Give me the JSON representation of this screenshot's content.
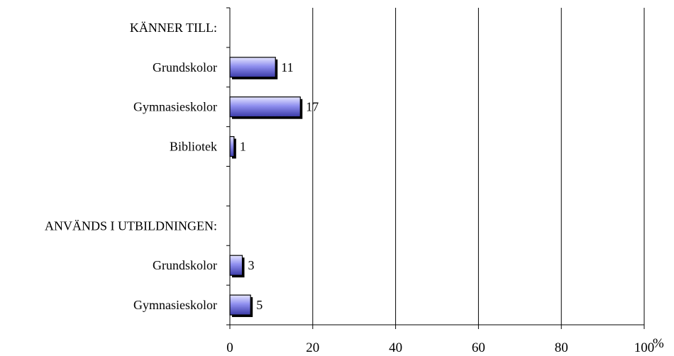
{
  "chart_data": {
    "type": "bar",
    "orientation": "horizontal",
    "rows": [
      {
        "label": "KÄNNER TILL:",
        "kind": "header"
      },
      {
        "label": "Grundskolor",
        "kind": "bar",
        "value": 11,
        "value_label": "11"
      },
      {
        "label": "Gymnasieskolor",
        "kind": "bar",
        "value": 17,
        "value_label": "17"
      },
      {
        "label": "Bibliotek",
        "kind": "bar",
        "value": 1,
        "value_label": "1"
      },
      {
        "label": "",
        "kind": "spacer"
      },
      {
        "label": "ANVÄNDS I UTBILDNINGEN:",
        "kind": "header"
      },
      {
        "label": "Grundskolor",
        "kind": "bar",
        "value": 3,
        "value_label": "3"
      },
      {
        "label": "Gymnasieskolor",
        "kind": "bar",
        "value": 5,
        "value_label": "5"
      }
    ],
    "x_ticks": [
      0,
      20,
      40,
      60,
      80,
      100
    ],
    "x_tick_labels": [
      "0",
      "20",
      "40",
      "60",
      "80",
      "100"
    ],
    "x_unit": "%",
    "xlim": [
      0,
      100
    ],
    "grid": "vertical",
    "bar_color": "#8f8fef",
    "bar_edge_color": "#000000",
    "legend": "none"
  }
}
